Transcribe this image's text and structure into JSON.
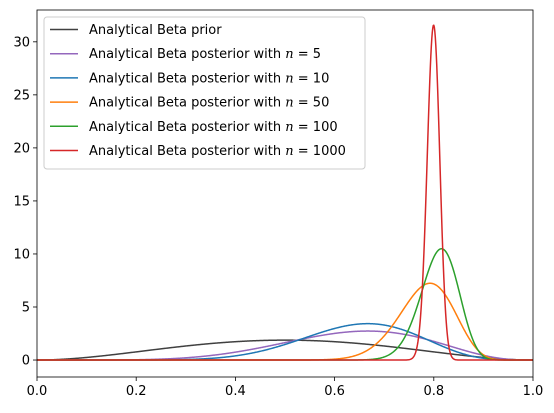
{
  "chart_data": {
    "type": "line",
    "title": "",
    "xlabel": "",
    "ylabel": "",
    "xlim": [
      0.0,
      1.0
    ],
    "ylim": [
      -1.6,
      33.0
    ],
    "xticks": [
      0.0,
      0.2,
      0.4,
      0.6,
      0.8,
      1.0
    ],
    "xtick_labels": [
      "0.0",
      "0.2",
      "0.4",
      "0.6",
      "0.8",
      "1.0"
    ],
    "yticks": [
      0,
      5,
      10,
      15,
      20,
      25,
      30
    ],
    "ytick_labels": [
      "0",
      "5",
      "10",
      "15",
      "20",
      "25",
      "30"
    ],
    "grid": false,
    "legend_position": "upper-left",
    "series": [
      {
        "name": "Analytical Beta prior",
        "color": "#404040",
        "distribution": "beta",
        "params": [
          3,
          3
        ],
        "x": [
          0.0,
          0.05,
          0.1,
          0.15,
          0.2,
          0.25,
          0.3,
          0.35,
          0.4,
          0.45,
          0.5,
          0.55,
          0.6,
          0.65,
          0.7,
          0.75,
          0.8,
          0.85,
          0.9,
          0.95,
          1.0
        ],
        "y": [
          0.0,
          0.068,
          0.243,
          0.468,
          0.768,
          1.055,
          1.323,
          1.656,
          2.016,
          2.226,
          2.345,
          2.226,
          2.016,
          1.656,
          1.323,
          1.055,
          0.768,
          0.468,
          0.243,
          0.068,
          0.0
        ]
      },
      {
        "name": "Analytical Beta posterior with n = 5",
        "name_parts": [
          "Analytical Beta posterior with ",
          "n",
          " = 5"
        ],
        "color": "#9467bd",
        "distribution": "beta",
        "params": [
          7,
          4
        ],
        "x": [
          0.0,
          0.1,
          0.2,
          0.3,
          0.4,
          0.45,
          0.5,
          0.55,
          0.6,
          0.65,
          0.7,
          0.75,
          0.8,
          0.85,
          0.9,
          0.95,
          1.0
        ],
        "y": [
          0.0,
          0.001,
          0.046,
          0.337,
          1.062,
          1.563,
          2.051,
          2.574,
          2.858,
          2.963,
          2.784,
          2.296,
          1.726,
          1.067,
          0.509,
          0.138,
          0.0
        ]
      },
      {
        "name": "Analytical Beta posterior with n = 10",
        "name_parts": [
          "Analytical Beta posterior with ",
          "n",
          " = 10"
        ],
        "color": "#1f77b4",
        "distribution": "beta",
        "params": [
          11,
          6
        ],
        "x": [
          0.0,
          0.2,
          0.3,
          0.4,
          0.5,
          0.55,
          0.6,
          0.65,
          0.7,
          0.75,
          0.8,
          0.85,
          0.9,
          0.95,
          1.0
        ],
        "y": [
          0.0,
          0.004,
          0.103,
          0.647,
          1.833,
          2.601,
          3.249,
          3.634,
          3.646,
          3.184,
          2.376,
          1.388,
          0.574,
          0.107,
          0.0
        ]
      },
      {
        "name": "Analytical Beta posterior with n = 50",
        "name_parts": [
          "Analytical Beta posterior with ",
          "n",
          " = 50"
        ],
        "color": "#ff7f0e",
        "distribution": "beta",
        "params": [
          43,
          12
        ],
        "x": [
          0.0,
          0.5,
          0.6,
          0.65,
          0.7,
          0.72,
          0.74,
          0.76,
          0.78,
          0.8,
          0.82,
          0.84,
          0.86,
          0.88,
          0.9,
          0.95,
          1.0
        ],
        "y": [
          0.0,
          0.003,
          0.088,
          0.478,
          1.768,
          2.643,
          3.84,
          5.226,
          6.602,
          7.453,
          7.421,
          6.314,
          4.502,
          2.564,
          1.053,
          0.036,
          0.0
        ]
      },
      {
        "name": "Analytical Beta posterior with n = 100",
        "name_parts": [
          "Analytical Beta posterior with ",
          "n",
          " = 100"
        ],
        "color": "#2ca02c",
        "distribution": "beta",
        "params": [
          85,
          20
        ],
        "x": [
          0.0,
          0.6,
          0.7,
          0.74,
          0.76,
          0.78,
          0.8,
          0.81,
          0.82,
          0.83,
          0.84,
          0.86,
          0.88,
          0.9,
          0.92,
          1.0
        ],
        "y": [
          0.0,
          0.0,
          0.391,
          2.015,
          3.715,
          6.097,
          8.641,
          9.828,
          10.526,
          10.526,
          9.756,
          6.852,
          3.486,
          1.047,
          0.145,
          0.0
        ]
      },
      {
        "name": "Analytical Beta posterior with n = 1000",
        "name_parts": [
          "Analytical Beta posterior with ",
          "n",
          " = 1000"
        ],
        "color": "#d62728",
        "distribution": "beta",
        "params": [
          803,
          202
        ],
        "x": [
          0.0,
          0.74,
          0.76,
          0.77,
          0.78,
          0.79,
          0.795,
          0.8,
          0.805,
          0.81,
          0.82,
          0.83,
          0.84,
          0.86,
          1.0
        ],
        "y": [
          0.0,
          0.0,
          0.103,
          1.147,
          6.728,
          21.096,
          28.926,
          31.588,
          27.591,
          19.228,
          4.816,
          0.43,
          0.012,
          0.0,
          0.0
        ]
      }
    ]
  }
}
